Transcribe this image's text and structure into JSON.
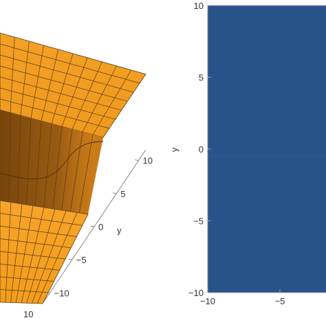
{
  "chart_data": [
    {
      "type": "surface",
      "axis_label": "y",
      "y_ticks": [
        -10,
        -5,
        0,
        5,
        10
      ],
      "x_ticks_visible": [
        10
      ],
      "colors": {
        "surface": "#f7a21b",
        "shadow": "#6b3d0a",
        "mesh": "#5a3a10"
      }
    },
    {
      "type": "heatmap",
      "ylabel": "y",
      "xlim": [
        -10,
        10
      ],
      "ylim": [
        -10,
        10
      ],
      "y_ticks": [
        10,
        5,
        0,
        -5,
        -10
      ],
      "x_ticks": [
        -10,
        -5
      ],
      "colors": {
        "fill": "#28528a",
        "frame": "#9a9a9a"
      }
    }
  ]
}
